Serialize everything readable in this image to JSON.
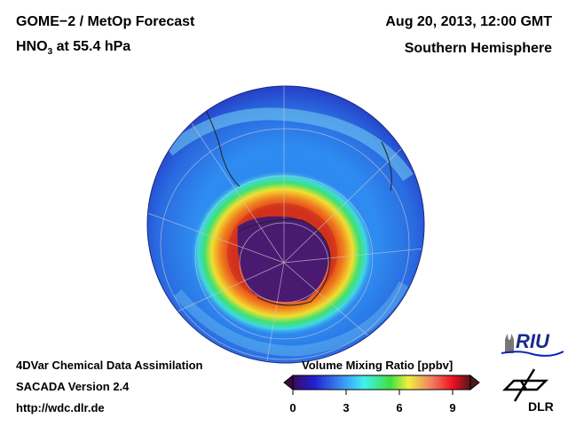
{
  "header": {
    "title_line1": "GOME−2 / MetOp Forecast",
    "species": "HNO",
    "species_sub": "3",
    "level": " at 55.4 hPa",
    "date": "Aug 20, 2013, 12:00 GMT",
    "region": "Southern Hemisphere"
  },
  "footer": {
    "line1": "4DVar Chemical Data Assimilation",
    "line2": "SACADA Version 2.4",
    "line3": "http://wdc.dlr.de"
  },
  "colorbar": {
    "title": "Volume Mixing Ratio [ppbv]",
    "ticks": [
      "0",
      "3",
      "6",
      "9"
    ],
    "range": [
      0,
      10
    ]
  },
  "logos": {
    "riu": "RIU",
    "dlr": "DLR"
  }
}
